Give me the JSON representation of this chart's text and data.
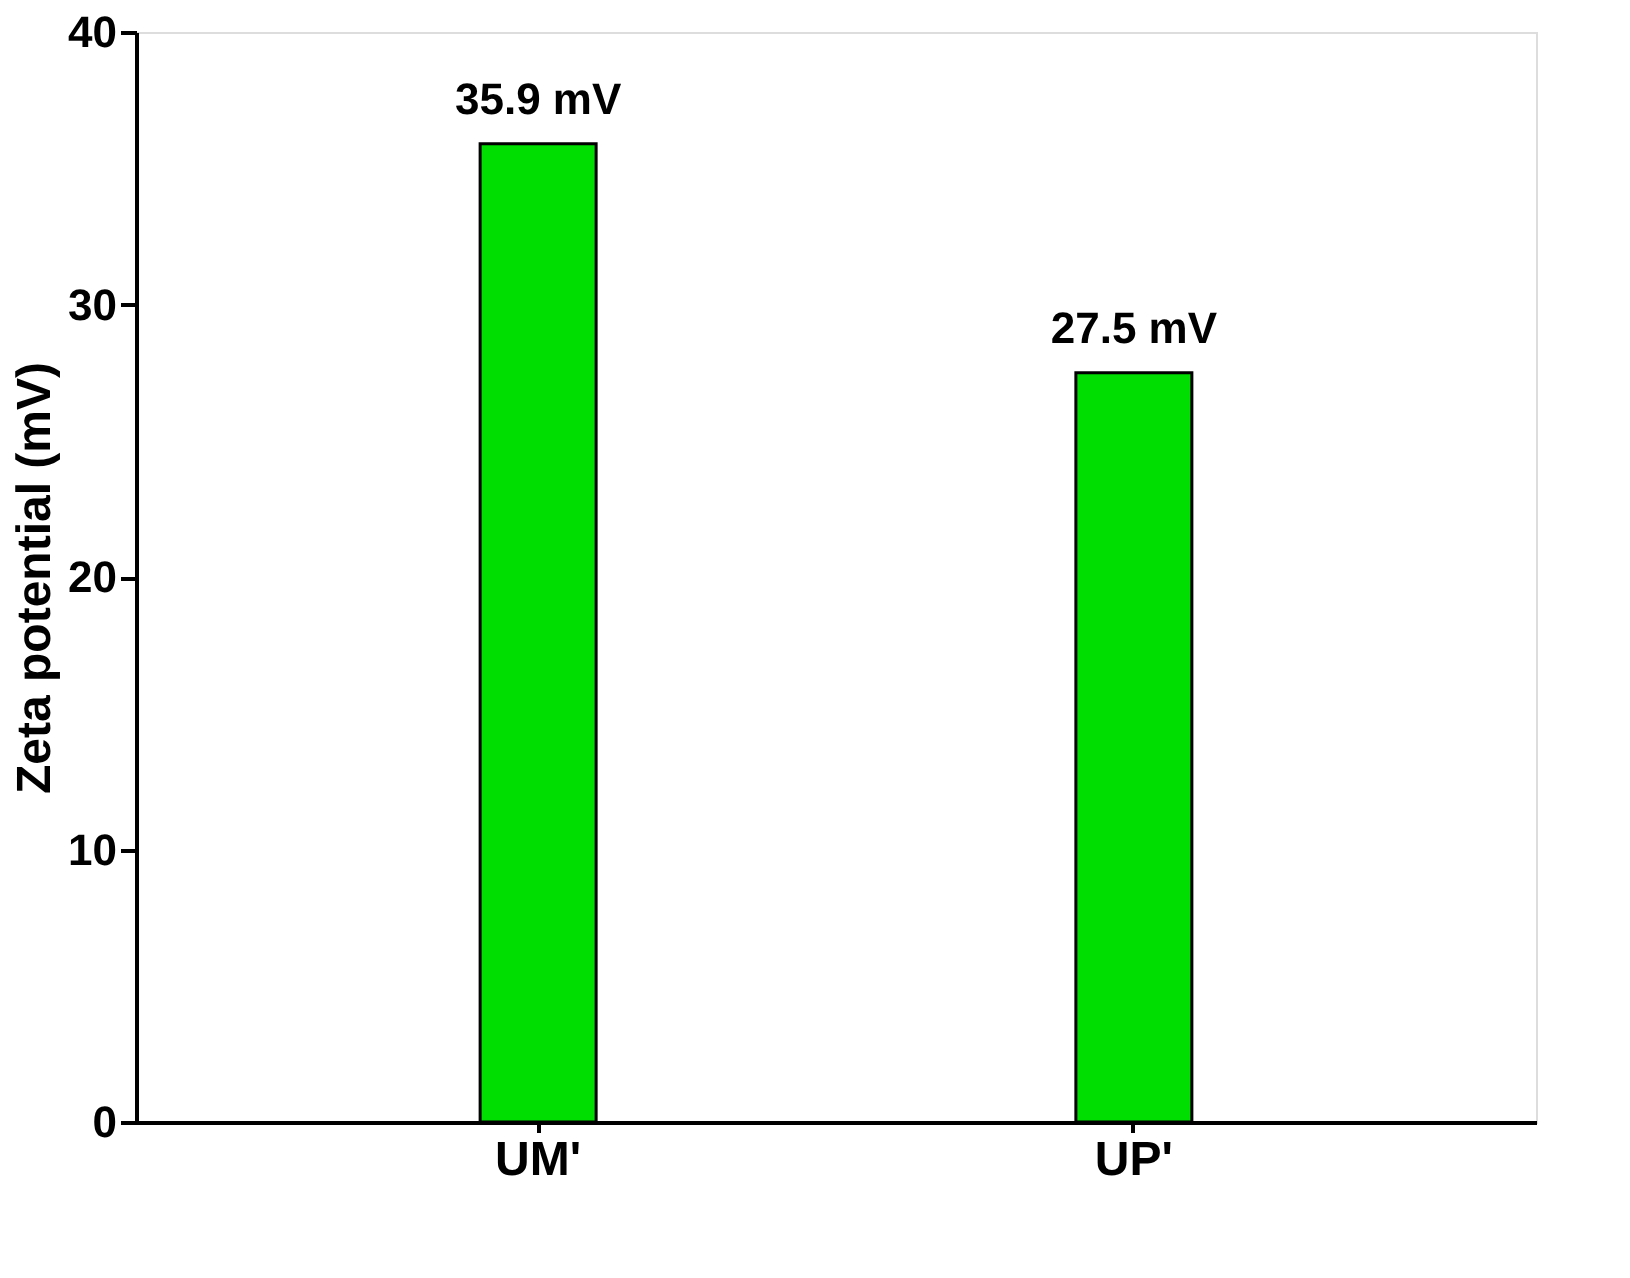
{
  "chart_data": {
    "type": "bar",
    "ylabel": "Zeta potential (mV)",
    "categories": [
      "UM'",
      "UP'"
    ],
    "values": [
      35.9,
      27.5
    ],
    "color": "#00dd00",
    "value_labels": [
      "35.9 mV",
      "27.5 mV"
    ],
    "ylim": [
      0,
      40
    ],
    "yticks": [
      0,
      10,
      20,
      30,
      40
    ],
    "grid": false
  }
}
